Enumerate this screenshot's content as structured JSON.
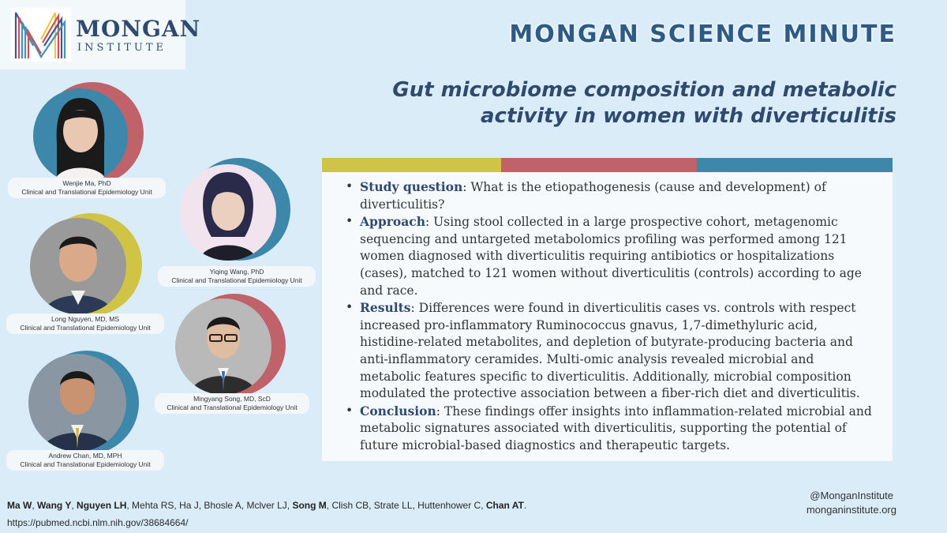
{
  "logo": {
    "name_top": "MONGAN",
    "name_bottom": "INSTITUTE",
    "colors": [
      "#3b5a8f",
      "#c94f5a",
      "#e9c94a",
      "#4a8fb5"
    ]
  },
  "header": {
    "title": "MONGAN SCIENCE MINUTE",
    "subtitle_line1": "Gut microbiome composition and metabolic",
    "subtitle_line2": "activity in women with diverticulitis"
  },
  "color_bar": [
    "#cfc446",
    "#c0626a",
    "#3d87ab"
  ],
  "summary": [
    {
      "label": "Study question",
      "text": ": What is the etiopathogenesis (cause and development) of diverticulitis?"
    },
    {
      "label": "Approach",
      "text": ": Using stool collected in a large prospective cohort, metagenomic sequencing and untargeted metabolomics profiling was performed among 121 women diagnosed with diverticulitis requiring antibiotics or hospitalizations (cases), matched to 121 women without diverticulitis (controls) according to age and race."
    },
    {
      "label": "Results",
      "text": ": Differences were found in diverticulitis cases vs. controls with respect increased pro-inflammatory Ruminococcus gnavus, 1,7-dimethyluric acid, histidine-related metabolites, and depletion of butyrate-producing bacteria and anti-inflammatory ceramides. Multi-omic analysis revealed microbial and metabolic features specific to diverticulitis. Additionally, microbial composition modulated the protective association between a fiber-rich diet and diverticulitis."
    },
    {
      "label": "Conclusion",
      "text": ": These findings offer insights into inflammation-related microbial and metabolic signatures associated with diverticulitis, supporting the potential of future microbial-based diagnostics and therapeutic targets."
    }
  ],
  "people": [
    {
      "name": "Wenjie Ma, PhD",
      "unit": "Clinical and Translational Epidemiology Unit",
      "ring_color": "#c0626a",
      "bg": "#3d87ab"
    },
    {
      "name": "Yiqing Wang, PhD",
      "unit": "Clinical and Translational Epidemiology Unit",
      "ring_color": "#3d87ab",
      "bg": "#f2e4ef"
    },
    {
      "name": "Long Nguyen, MD, MS",
      "unit": "Clinical and Translational Epidemiology Unit",
      "ring_color": "#cfc446",
      "bg": "#9a9a9a"
    },
    {
      "name": "Mingyang Song, MD, ScD",
      "unit": "Clinical and Translational Epidemiology Unit",
      "ring_color": "#c0626a",
      "bg": "#b9b9b9"
    },
    {
      "name": "Andrew Chan, MD, MPH",
      "unit": "Clinical and Translational Epidemiology Unit",
      "ring_color": "#3d87ab",
      "bg": "#8a97a3"
    }
  ],
  "footer": {
    "authors_bold_1": "Ma W",
    "sep1": ", ",
    "authors_bold_2": "Wang Y",
    "sep2": ", ",
    "authors_bold_3": "Nguyen LH",
    "authors_mid": ", Mehta RS, Ha J, Bhosle A, Mclver LJ, ",
    "authors_bold_4": "Song M",
    "authors_mid2": ", Clish CB, Strate LL, Huttenhower C, ",
    "authors_bold_5": "Chan AT",
    "authors_end": ".",
    "url": "https://pubmed.ncbi.nlm.nih.gov/38684664/",
    "handle": "@MonganInstitute",
    "website": "monganinstitute.org"
  }
}
